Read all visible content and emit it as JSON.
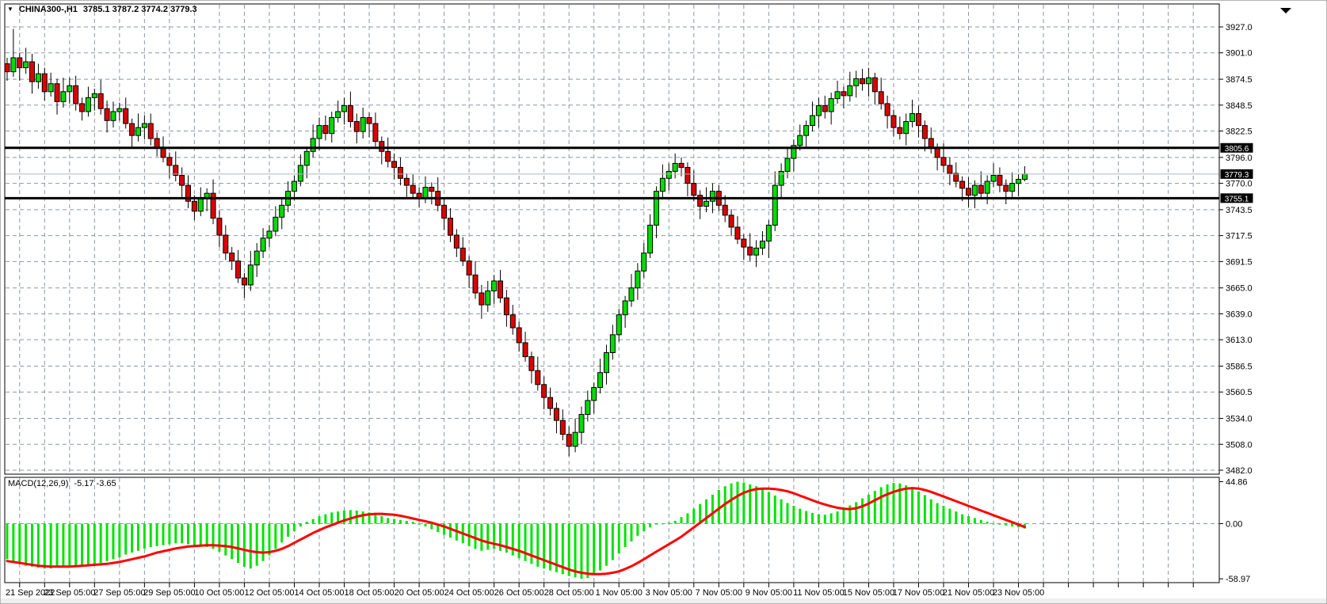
{
  "header": {
    "dropdown_icon": "▼",
    "symbol_timeframe": "CHINA300-,H1",
    "ohlc": "3785.1 3787.2 3774.2 3779.3"
  },
  "macd": {
    "label": "MACD(12,26,9)",
    "values": "-5.17 -3.65",
    "axis_ticks": [
      {
        "label": "44.86",
        "value": 44.86
      },
      {
        "label": "0.00",
        "value": 0
      },
      {
        "label": "-58.97",
        "value": -58.97
      }
    ]
  },
  "price_axis": {
    "ticks": [
      3927.0,
      3901.0,
      3874.5,
      3848.5,
      3822.5,
      3796.0,
      3770.0,
      3743.5,
      3717.5,
      3691.5,
      3665.0,
      3639.0,
      3613.0,
      3586.5,
      3560.5,
      3534.0,
      3508.0,
      3482.0
    ],
    "badges": [
      {
        "label": "3805.6",
        "value": 3805.6,
        "role": "resistance"
      },
      {
        "label": "3779.3",
        "value": 3779.3,
        "role": "current-price"
      },
      {
        "label": "3755.1",
        "value": 3755.1,
        "role": "support"
      }
    ]
  },
  "time_axis": {
    "labels": [
      "21 Sep 2022",
      "23 Sep 05:00",
      "27 Sep 05:00",
      "29 Sep 05:00",
      "10 Oct 05:00",
      "12 Oct 05:00",
      "14 Oct 05:00",
      "18 Oct 05:00",
      "20 Oct 05:00",
      "24 Oct 05:00",
      "26 Oct 05:00",
      "28 Oct 05:00",
      "1 Nov 05:00",
      "3 Nov 05:00",
      "7 Nov 05:00",
      "9 Nov 05:00",
      "11 Nov 05:00",
      "15 Nov 05:00",
      "17 Nov 05:00",
      "21 Nov 05:00",
      "23 Nov 05:00"
    ]
  },
  "levels": {
    "hlines": [
      3805.6,
      3755.1
    ],
    "current_price": 3779.3
  },
  "colors": {
    "bull": "#00dd00",
    "bear": "#dd0000",
    "wick": "#000000",
    "candle_outline": "#000000",
    "histogram": "#00e400",
    "signal": "#ff0000",
    "grid": "#8a97a5",
    "level_line": "#000000",
    "current_price_line": "#b0b7bf",
    "badge_bg": "#000000",
    "badge_text": "#ffffff",
    "axis_text": "#000000",
    "panel_border": "#000000"
  },
  "chart_data": {
    "type": "candlestick",
    "title": "CHINA300- H1 candlestick chart with MACD(12,26,9)",
    "price_range": {
      "min": 3482.0,
      "max": 3927.0
    },
    "macd_range": {
      "min": -58.97,
      "max": 44.86
    },
    "legend_position": "none",
    "grid": true,
    "macd_last_values": {
      "main": -5.17,
      "signal": -3.65
    },
    "candles": [
      [
        3890,
        3896,
        3873,
        3882
      ],
      [
        3882,
        3925,
        3877,
        3896
      ],
      [
        3896,
        3901,
        3873,
        3886
      ],
      [
        3886,
        3906,
        3880,
        3892
      ],
      [
        3892,
        3900,
        3860,
        3872
      ],
      [
        3872,
        3890,
        3865,
        3880
      ],
      [
        3880,
        3886,
        3853,
        3862
      ],
      [
        3862,
        3881,
        3857,
        3870
      ],
      [
        3870,
        3875,
        3839,
        3852
      ],
      [
        3852,
        3876,
        3846,
        3862
      ],
      [
        3862,
        3876,
        3850,
        3868
      ],
      [
        3868,
        3878,
        3843,
        3850
      ],
      [
        3850,
        3856,
        3833,
        3842
      ],
      [
        3842,
        3867,
        3837,
        3856
      ],
      [
        3856,
        3865,
        3843,
        3860
      ],
      [
        3860,
        3874,
        3839,
        3845
      ],
      [
        3845,
        3853,
        3821,
        3833
      ],
      [
        3833,
        3852,
        3826,
        3842
      ],
      [
        3842,
        3851,
        3833,
        3845
      ],
      [
        3845,
        3856,
        3825,
        3830
      ],
      [
        3830,
        3835,
        3805,
        3818
      ],
      [
        3818,
        3840,
        3812,
        3826
      ],
      [
        3826,
        3838,
        3814,
        3830
      ],
      [
        3830,
        3840,
        3808,
        3815
      ],
      [
        3815,
        3821,
        3797,
        3806
      ],
      [
        3806,
        3817,
        3791,
        3796
      ],
      [
        3796,
        3801,
        3775,
        3788
      ],
      [
        3788,
        3802,
        3772,
        3778
      ],
      [
        3778,
        3786,
        3756,
        3768
      ],
      [
        3768,
        3778,
        3745,
        3752
      ],
      [
        3752,
        3758,
        3733,
        3742
      ],
      [
        3742,
        3766,
        3737,
        3755
      ],
      [
        3755,
        3765,
        3742,
        3760
      ],
      [
        3760,
        3774,
        3729,
        3735
      ],
      [
        3735,
        3743,
        3706,
        3718
      ],
      [
        3718,
        3728,
        3693,
        3700
      ],
      [
        3700,
        3706,
        3683,
        3692
      ],
      [
        3692,
        3703,
        3670,
        3675
      ],
      [
        3675,
        3680,
        3655,
        3668
      ],
      [
        3668,
        3702,
        3662,
        3688
      ],
      [
        3688,
        3710,
        3676,
        3702
      ],
      [
        3702,
        3725,
        3695,
        3715
      ],
      [
        3715,
        3728,
        3706,
        3722
      ],
      [
        3722,
        3747,
        3717,
        3736
      ],
      [
        3736,
        3756,
        3724,
        3748
      ],
      [
        3748,
        3772,
        3741,
        3762
      ],
      [
        3762,
        3778,
        3753,
        3772
      ],
      [
        3772,
        3799,
        3767,
        3788
      ],
      [
        3788,
        3807,
        3775,
        3802
      ],
      [
        3802,
        3829,
        3796,
        3815
      ],
      [
        3815,
        3836,
        3803,
        3828
      ],
      [
        3828,
        3838,
        3813,
        3820
      ],
      [
        3820,
        3842,
        3811,
        3836
      ],
      [
        3836,
        3853,
        3831,
        3842
      ],
      [
        3842,
        3856,
        3829,
        3848
      ],
      [
        3848,
        3862,
        3826,
        3832
      ],
      [
        3832,
        3840,
        3810,
        3822
      ],
      [
        3822,
        3846,
        3815,
        3836
      ],
      [
        3836,
        3841,
        3816,
        3830
      ],
      [
        3830,
        3841,
        3807,
        3812
      ],
      [
        3812,
        3817,
        3789,
        3802
      ],
      [
        3802,
        3816,
        3786,
        3792
      ],
      [
        3792,
        3800,
        3774,
        3786
      ],
      [
        3786,
        3796,
        3768,
        3775
      ],
      [
        3775,
        3780,
        3755,
        3768
      ],
      [
        3768,
        3779,
        3755,
        3760
      ],
      [
        3760,
        3766,
        3746,
        3755
      ],
      [
        3755,
        3777,
        3750,
        3766
      ],
      [
        3766,
        3771,
        3749,
        3762
      ],
      [
        3762,
        3776,
        3742,
        3748
      ],
      [
        3748,
        3756,
        3723,
        3735
      ],
      [
        3735,
        3745,
        3711,
        3718
      ],
      [
        3718,
        3724,
        3696,
        3705
      ],
      [
        3705,
        3716,
        3687,
        3692
      ],
      [
        3692,
        3697,
        3665,
        3678
      ],
      [
        3678,
        3692,
        3654,
        3660
      ],
      [
        3660,
        3668,
        3634,
        3648
      ],
      [
        3648,
        3672,
        3641,
        3662
      ],
      [
        3662,
        3678,
        3649,
        3672
      ],
      [
        3672,
        3683,
        3650,
        3655
      ],
      [
        3655,
        3663,
        3626,
        3638
      ],
      [
        3638,
        3648,
        3618,
        3625
      ],
      [
        3625,
        3631,
        3601,
        3610
      ],
      [
        3610,
        3621,
        3591,
        3596
      ],
      [
        3596,
        3601,
        3569,
        3582
      ],
      [
        3582,
        3596,
        3562,
        3568
      ],
      [
        3568,
        3576,
        3543,
        3555
      ],
      [
        3555,
        3565,
        3537,
        3544
      ],
      [
        3544,
        3550,
        3519,
        3532
      ],
      [
        3532,
        3543,
        3512,
        3518
      ],
      [
        3518,
        3526,
        3496,
        3506
      ],
      [
        3506,
        3534,
        3500,
        3520
      ],
      [
        3520,
        3546,
        3508,
        3538
      ],
      [
        3538,
        3562,
        3531,
        3552
      ],
      [
        3552,
        3570,
        3539,
        3565
      ],
      [
        3565,
        3594,
        3559,
        3580
      ],
      [
        3580,
        3608,
        3568,
        3600
      ],
      [
        3600,
        3628,
        3593,
        3618
      ],
      [
        3618,
        3644,
        3611,
        3638
      ],
      [
        3638,
        3657,
        3625,
        3652
      ],
      [
        3652,
        3679,
        3646,
        3665
      ],
      [
        3665,
        3690,
        3653,
        3682
      ],
      [
        3682,
        3710,
        3675,
        3700
      ],
      [
        3700,
        3739,
        3695,
        3728
      ],
      [
        3728,
        3767,
        3715,
        3762
      ],
      [
        3762,
        3789,
        3756,
        3775
      ],
      [
        3775,
        3790,
        3763,
        3782
      ],
      [
        3782,
        3800,
        3775,
        3790
      ],
      [
        3790,
        3796,
        3777,
        3786
      ],
      [
        3786,
        3791,
        3757,
        3770
      ],
      [
        3770,
        3783,
        3752,
        3758
      ],
      [
        3758,
        3763,
        3734,
        3747
      ],
      [
        3747,
        3766,
        3741,
        3752
      ],
      [
        3752,
        3770,
        3740,
        3762
      ],
      [
        3762,
        3768,
        3742,
        3748
      ],
      [
        3748,
        3758,
        3731,
        3738
      ],
      [
        3738,
        3744,
        3717,
        3726
      ],
      [
        3726,
        3737,
        3709,
        3714
      ],
      [
        3714,
        3719,
        3693,
        3706
      ],
      [
        3706,
        3720,
        3692,
        3698
      ],
      [
        3698,
        3713,
        3686,
        3705
      ],
      [
        3705,
        3722,
        3698,
        3712
      ],
      [
        3712,
        3733,
        3695,
        3728
      ],
      [
        3728,
        3782,
        3722,
        3768
      ],
      [
        3768,
        3790,
        3756,
        3782
      ],
      [
        3782,
        3805,
        3775,
        3795
      ],
      [
        3795,
        3814,
        3782,
        3808
      ],
      [
        3808,
        3829,
        3803,
        3818
      ],
      [
        3818,
        3833,
        3805,
        3828
      ],
      [
        3828,
        3852,
        3822,
        3838
      ],
      [
        3838,
        3856,
        3826,
        3848
      ],
      [
        3848,
        3858,
        3835,
        3842
      ],
      [
        3842,
        3861,
        3829,
        3855
      ],
      [
        3855,
        3873,
        3850,
        3862
      ],
      [
        3862,
        3867,
        3845,
        3858
      ],
      [
        3858,
        3882,
        3852,
        3868
      ],
      [
        3868,
        3883,
        3856,
        3875
      ],
      [
        3875,
        3885,
        3863,
        3870
      ],
      [
        3870,
        3886,
        3857,
        3876
      ],
      [
        3876,
        3881,
        3849,
        3862
      ],
      [
        3862,
        3876,
        3844,
        3850
      ],
      [
        3850,
        3858,
        3825,
        3838
      ],
      [
        3838,
        3844,
        3817,
        3826
      ],
      [
        3826,
        3837,
        3814,
        3820
      ],
      [
        3820,
        3840,
        3808,
        3832
      ],
      [
        3832,
        3854,
        3826,
        3840
      ],
      [
        3840,
        3848,
        3816,
        3828
      ],
      [
        3828,
        3833,
        3802,
        3815
      ],
      [
        3815,
        3826,
        3800,
        3805
      ],
      [
        3805,
        3810,
        3783,
        3796
      ],
      [
        3796,
        3810,
        3781,
        3788
      ],
      [
        3788,
        3796,
        3768,
        3780
      ],
      [
        3780,
        3791,
        3766,
        3772
      ],
      [
        3772,
        3777,
        3752,
        3765
      ],
      [
        3765,
        3776,
        3746,
        3758
      ],
      [
        3758,
        3773,
        3745,
        3768
      ],
      [
        3768,
        3782,
        3754,
        3760
      ],
      [
        3760,
        3778,
        3749,
        3772
      ],
      [
        3772,
        3790,
        3766,
        3778
      ],
      [
        3778,
        3786,
        3761,
        3768
      ],
      [
        3768,
        3774,
        3749,
        3762
      ],
      [
        3762,
        3781,
        3756,
        3770
      ],
      [
        3770,
        3779,
        3757,
        3774
      ],
      [
        3774,
        3787.2,
        3772,
        3779.3
      ]
    ],
    "macd_histogram": [
      -38,
      -41,
      -43,
      -45,
      -46,
      -47,
      -48,
      -48,
      -47,
      -46,
      -46,
      -45,
      -45,
      -44,
      -43,
      -42,
      -40,
      -38,
      -36,
      -33,
      -31,
      -29,
      -27,
      -25,
      -24,
      -23,
      -22,
      -21,
      -21,
      -22,
      -23,
      -24,
      -25,
      -27,
      -30,
      -34,
      -38,
      -42,
      -46,
      -48,
      -45,
      -40,
      -34,
      -27,
      -20,
      -14,
      -8,
      -3,
      2,
      5,
      8,
      10,
      12,
      13,
      14,
      14.5,
      14,
      13,
      12,
      10,
      8,
      6,
      5,
      4,
      3,
      2,
      -1,
      -3,
      -6,
      -9,
      -12,
      -15,
      -18,
      -21,
      -24,
      -27,
      -29,
      -28,
      -27,
      -29,
      -31,
      -34,
      -37,
      -40,
      -43,
      -46,
      -48,
      -50,
      -52,
      -54,
      -56,
      -57.5,
      -58.97,
      -58,
      -55,
      -50,
      -45,
      -39,
      -32,
      -25,
      -19,
      -13,
      -8,
      -4,
      -1,
      0,
      1,
      3,
      7,
      11,
      16,
      21,
      26,
      31,
      36,
      40,
      43,
      44.86,
      44,
      42,
      40,
      37,
      34,
      30,
      26,
      22,
      19,
      16,
      13.5,
      11.5,
      10,
      9.5,
      11,
      13,
      16,
      19.5,
      23,
      27,
      31,
      35,
      39,
      42,
      43.5,
      43,
      41,
      38,
      34.5,
      30.5,
      26,
      22,
      19,
      16,
      13,
      10,
      8,
      6,
      4,
      2,
      0,
      -1,
      -2,
      -3,
      -4,
      -5.17
    ],
    "macd_signal": [
      -40,
      -41,
      -42,
      -43,
      -44,
      -45,
      -45.5,
      -46,
      -46,
      -46,
      -46,
      -45.5,
      -45,
      -44.5,
      -44,
      -43.5,
      -43,
      -42,
      -41,
      -39.5,
      -38,
      -36.5,
      -35,
      -33,
      -31,
      -29.5,
      -28,
      -26.5,
      -25.5,
      -24.5,
      -24,
      -23.5,
      -23,
      -23,
      -23.5,
      -24,
      -25,
      -26.5,
      -28,
      -29.5,
      -30.5,
      -31,
      -30.5,
      -29,
      -27,
      -24,
      -20.5,
      -17,
      -13.5,
      -10,
      -7,
      -4,
      -1.5,
      1,
      3.5,
      5.5,
      7.5,
      9,
      10,
      10.5,
      10.5,
      10,
      9.5,
      8.5,
      7,
      5.5,
      4,
      2.5,
      1,
      -1,
      -3,
      -5.5,
      -8,
      -10.5,
      -13,
      -15.5,
      -18,
      -20,
      -21.5,
      -23,
      -25,
      -27,
      -29,
      -31.5,
      -34,
      -36.5,
      -39,
      -41.5,
      -44,
      -46.5,
      -49,
      -51,
      -52.5,
      -53.5,
      -54,
      -54,
      -53.5,
      -52.5,
      -51,
      -48.5,
      -45.5,
      -42,
      -38,
      -34,
      -30,
      -26,
      -22,
      -18,
      -14,
      -9,
      -4,
      1,
      6,
      11,
      16,
      21,
      25.5,
      29.5,
      33,
      35.5,
      37,
      37.5,
      37.5,
      37,
      36,
      34.5,
      32.5,
      30,
      27.5,
      25,
      22.5,
      20.5,
      18.5,
      17,
      16,
      15.5,
      16.5,
      18.5,
      21.5,
      25,
      28.5,
      31.5,
      34,
      36,
      37.5,
      38,
      37.5,
      36,
      34,
      31.5,
      29,
      26.5,
      24,
      21.5,
      19,
      16.5,
      14,
      11.5,
      9,
      6.5,
      4,
      1.5,
      -1,
      -3.65
    ]
  }
}
